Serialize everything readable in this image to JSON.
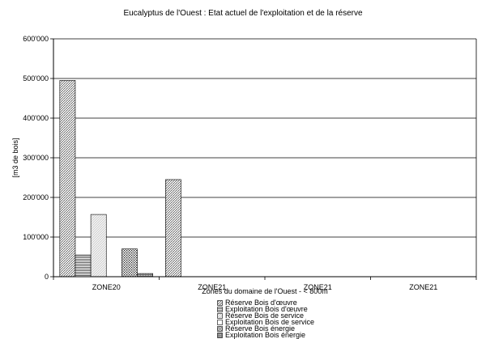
{
  "chart_data": {
    "type": "bar",
    "title": "Eucalyptus de l'Ouest : Etat actuel de l'exploitation et de la réserve",
    "xlabel": "Zones du domaine de l'Ouest - < 800m",
    "ylabel": "[m3 de bois]",
    "ylim": [
      0,
      600000
    ],
    "yticks": [
      "0",
      "100'000",
      "200'000",
      "300'000",
      "400'000",
      "500'000",
      "600'000"
    ],
    "categories": [
      "ZONE20",
      "ZONE21",
      "ZONE21",
      "ZONE21"
    ],
    "grid": true,
    "legend_position": "bottom",
    "series": [
      {
        "name": "Réserve Bois d'œuvre",
        "values": [
          495000,
          245000,
          0,
          0
        ],
        "pattern": "diag"
      },
      {
        "name": "Exploitation Bois d'œuvre",
        "values": [
          55000,
          0,
          0,
          0
        ],
        "pattern": "hlines"
      },
      {
        "name": "Réserve Bois de service",
        "values": [
          157000,
          0,
          0,
          0
        ],
        "pattern": "light"
      },
      {
        "name": "Exploitation Bois de service",
        "values": [
          0,
          0,
          0,
          0
        ],
        "pattern": "plain"
      },
      {
        "name": "Réserve Bois énergie",
        "values": [
          70000,
          0,
          0,
          0
        ],
        "pattern": "dots"
      },
      {
        "name": "Exploitation Bois énergie",
        "values": [
          8000,
          0,
          0,
          0
        ],
        "pattern": "dense"
      }
    ]
  }
}
